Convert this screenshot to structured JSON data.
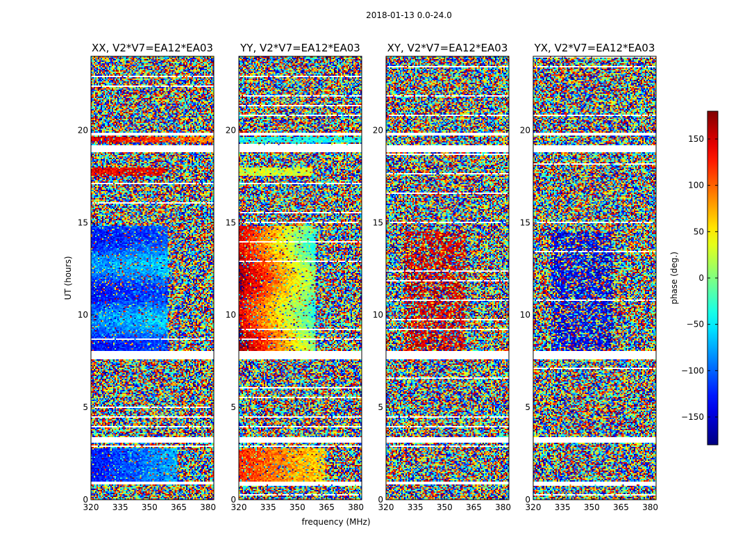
{
  "figure": {
    "suptitle": "2018-01-13 0.0-24.0"
  },
  "chart_data": {
    "type": "heatmap",
    "xlabel": "frequency (MHz)",
    "ylabel": "UT (hours)",
    "xlim": [
      320,
      383
    ],
    "ylim": [
      0,
      24
    ],
    "xticks": [
      320,
      335,
      350,
      365,
      380
    ],
    "yticks": [
      0,
      5,
      10,
      15,
      20
    ],
    "panels": [
      {
        "title": "XX, V2*V7=EA12*EA03"
      },
      {
        "title": "YY, V2*V7=EA12*EA03"
      },
      {
        "title": "XY, V2*V7=EA12*EA03"
      },
      {
        "title": "YX, V2*V7=EA12*EA03"
      }
    ],
    "colorbar": {
      "label": "phase (deg.)",
      "range": [
        -180,
        180
      ],
      "ticks": [
        -150,
        -100,
        -50,
        0,
        50,
        100,
        150
      ],
      "tick_labels": [
        "−150",
        "−100",
        "−50",
        "0",
        "50",
        "100",
        "150"
      ],
      "colormap": "jet"
    },
    "flagged_ut_ranges": [
      [
        0.85,
        0.95
      ],
      [
        3.1,
        3.4
      ],
      [
        7.6,
        8.05
      ],
      [
        18.8,
        19.2
      ],
      [
        19.7,
        19.85
      ]
    ]
  }
}
